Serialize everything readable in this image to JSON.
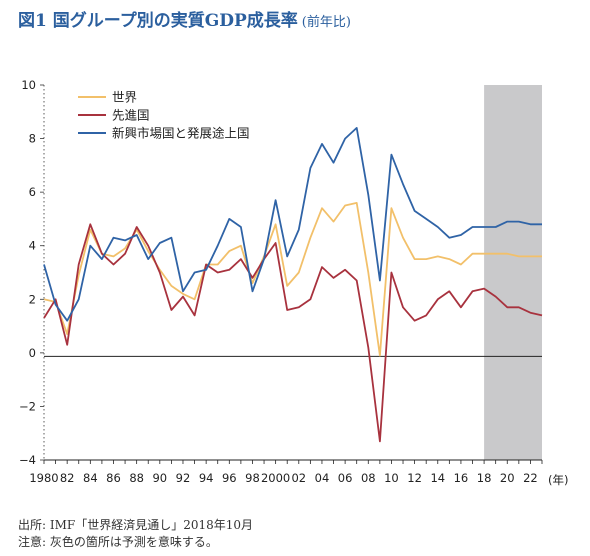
{
  "title": {
    "main": "図1 国グループ別の実質GDP成長率",
    "sub": "(前年比)"
  },
  "notes": {
    "source": "出所: IMF「世界経済見通し」2018年10月",
    "note": "注意: 灰色の箇所は予測を意味する。"
  },
  "chart_data": {
    "type": "line",
    "x": [
      1980,
      1981,
      1982,
      1983,
      1984,
      1985,
      1986,
      1987,
      1988,
      1989,
      1990,
      1991,
      1992,
      1993,
      1994,
      1995,
      1996,
      1997,
      1998,
      1999,
      2000,
      2001,
      2002,
      2003,
      2004,
      2005,
      2006,
      2007,
      2008,
      2009,
      2010,
      2011,
      2012,
      2013,
      2014,
      2015,
      2016,
      2017,
      2018,
      2019,
      2020,
      2021,
      2022,
      2023
    ],
    "x_tick_labels": [
      "1980",
      "82",
      "84",
      "86",
      "88",
      "90",
      "92",
      "94",
      "96",
      "98",
      "2000",
      "02",
      "04",
      "06",
      "08",
      "10",
      "12",
      "14",
      "16",
      "18",
      "20",
      "22"
    ],
    "x_unit_label": "(年)",
    "ylim": [
      -4,
      10
    ],
    "y_ticks": [
      "−4",
      "−2",
      "0",
      "2",
      "4",
      "6",
      "8",
      "10"
    ],
    "forecast_shade_from": 2018,
    "series": [
      {
        "name": "世界",
        "color": "#f2c06a",
        "values": [
          2.0,
          1.9,
          0.7,
          2.9,
          4.6,
          3.7,
          3.6,
          3.9,
          4.6,
          3.8,
          3.1,
          2.5,
          2.2,
          2.0,
          3.3,
          3.3,
          3.8,
          4.0,
          2.6,
          3.6,
          4.8,
          2.5,
          3.0,
          4.3,
          5.4,
          4.9,
          5.5,
          5.6,
          3.0,
          -0.1,
          5.4,
          4.3,
          3.5,
          3.5,
          3.6,
          3.5,
          3.3,
          3.7,
          3.7,
          3.7,
          3.7,
          3.6,
          3.6,
          3.6
        ]
      },
      {
        "name": "先進国",
        "color": "#a8323e",
        "values": [
          1.3,
          2.0,
          0.3,
          3.3,
          4.8,
          3.7,
          3.3,
          3.7,
          4.7,
          4.0,
          3.0,
          1.6,
          2.1,
          1.4,
          3.3,
          3.0,
          3.1,
          3.5,
          2.8,
          3.5,
          4.1,
          1.6,
          1.7,
          2.0,
          3.2,
          2.8,
          3.1,
          2.7,
          0.2,
          -3.3,
          3.0,
          1.7,
          1.2,
          1.4,
          2.0,
          2.3,
          1.7,
          2.3,
          2.4,
          2.1,
          1.7,
          1.7,
          1.5,
          1.4
        ]
      },
      {
        "name": "新興市場国と発展途上国",
        "color": "#2f63a6",
        "values": [
          3.3,
          1.8,
          1.2,
          2.0,
          4.0,
          3.5,
          4.3,
          4.2,
          4.4,
          3.5,
          4.1,
          4.3,
          2.3,
          3.0,
          3.1,
          4.0,
          5.0,
          4.7,
          2.3,
          3.5,
          5.7,
          3.6,
          4.6,
          6.9,
          7.8,
          7.1,
          8.0,
          8.4,
          5.9,
          2.7,
          7.4,
          6.3,
          5.3,
          5.0,
          4.7,
          4.3,
          4.4,
          4.7,
          4.7,
          4.7,
          4.9,
          4.9,
          4.8,
          4.8
        ]
      }
    ]
  }
}
